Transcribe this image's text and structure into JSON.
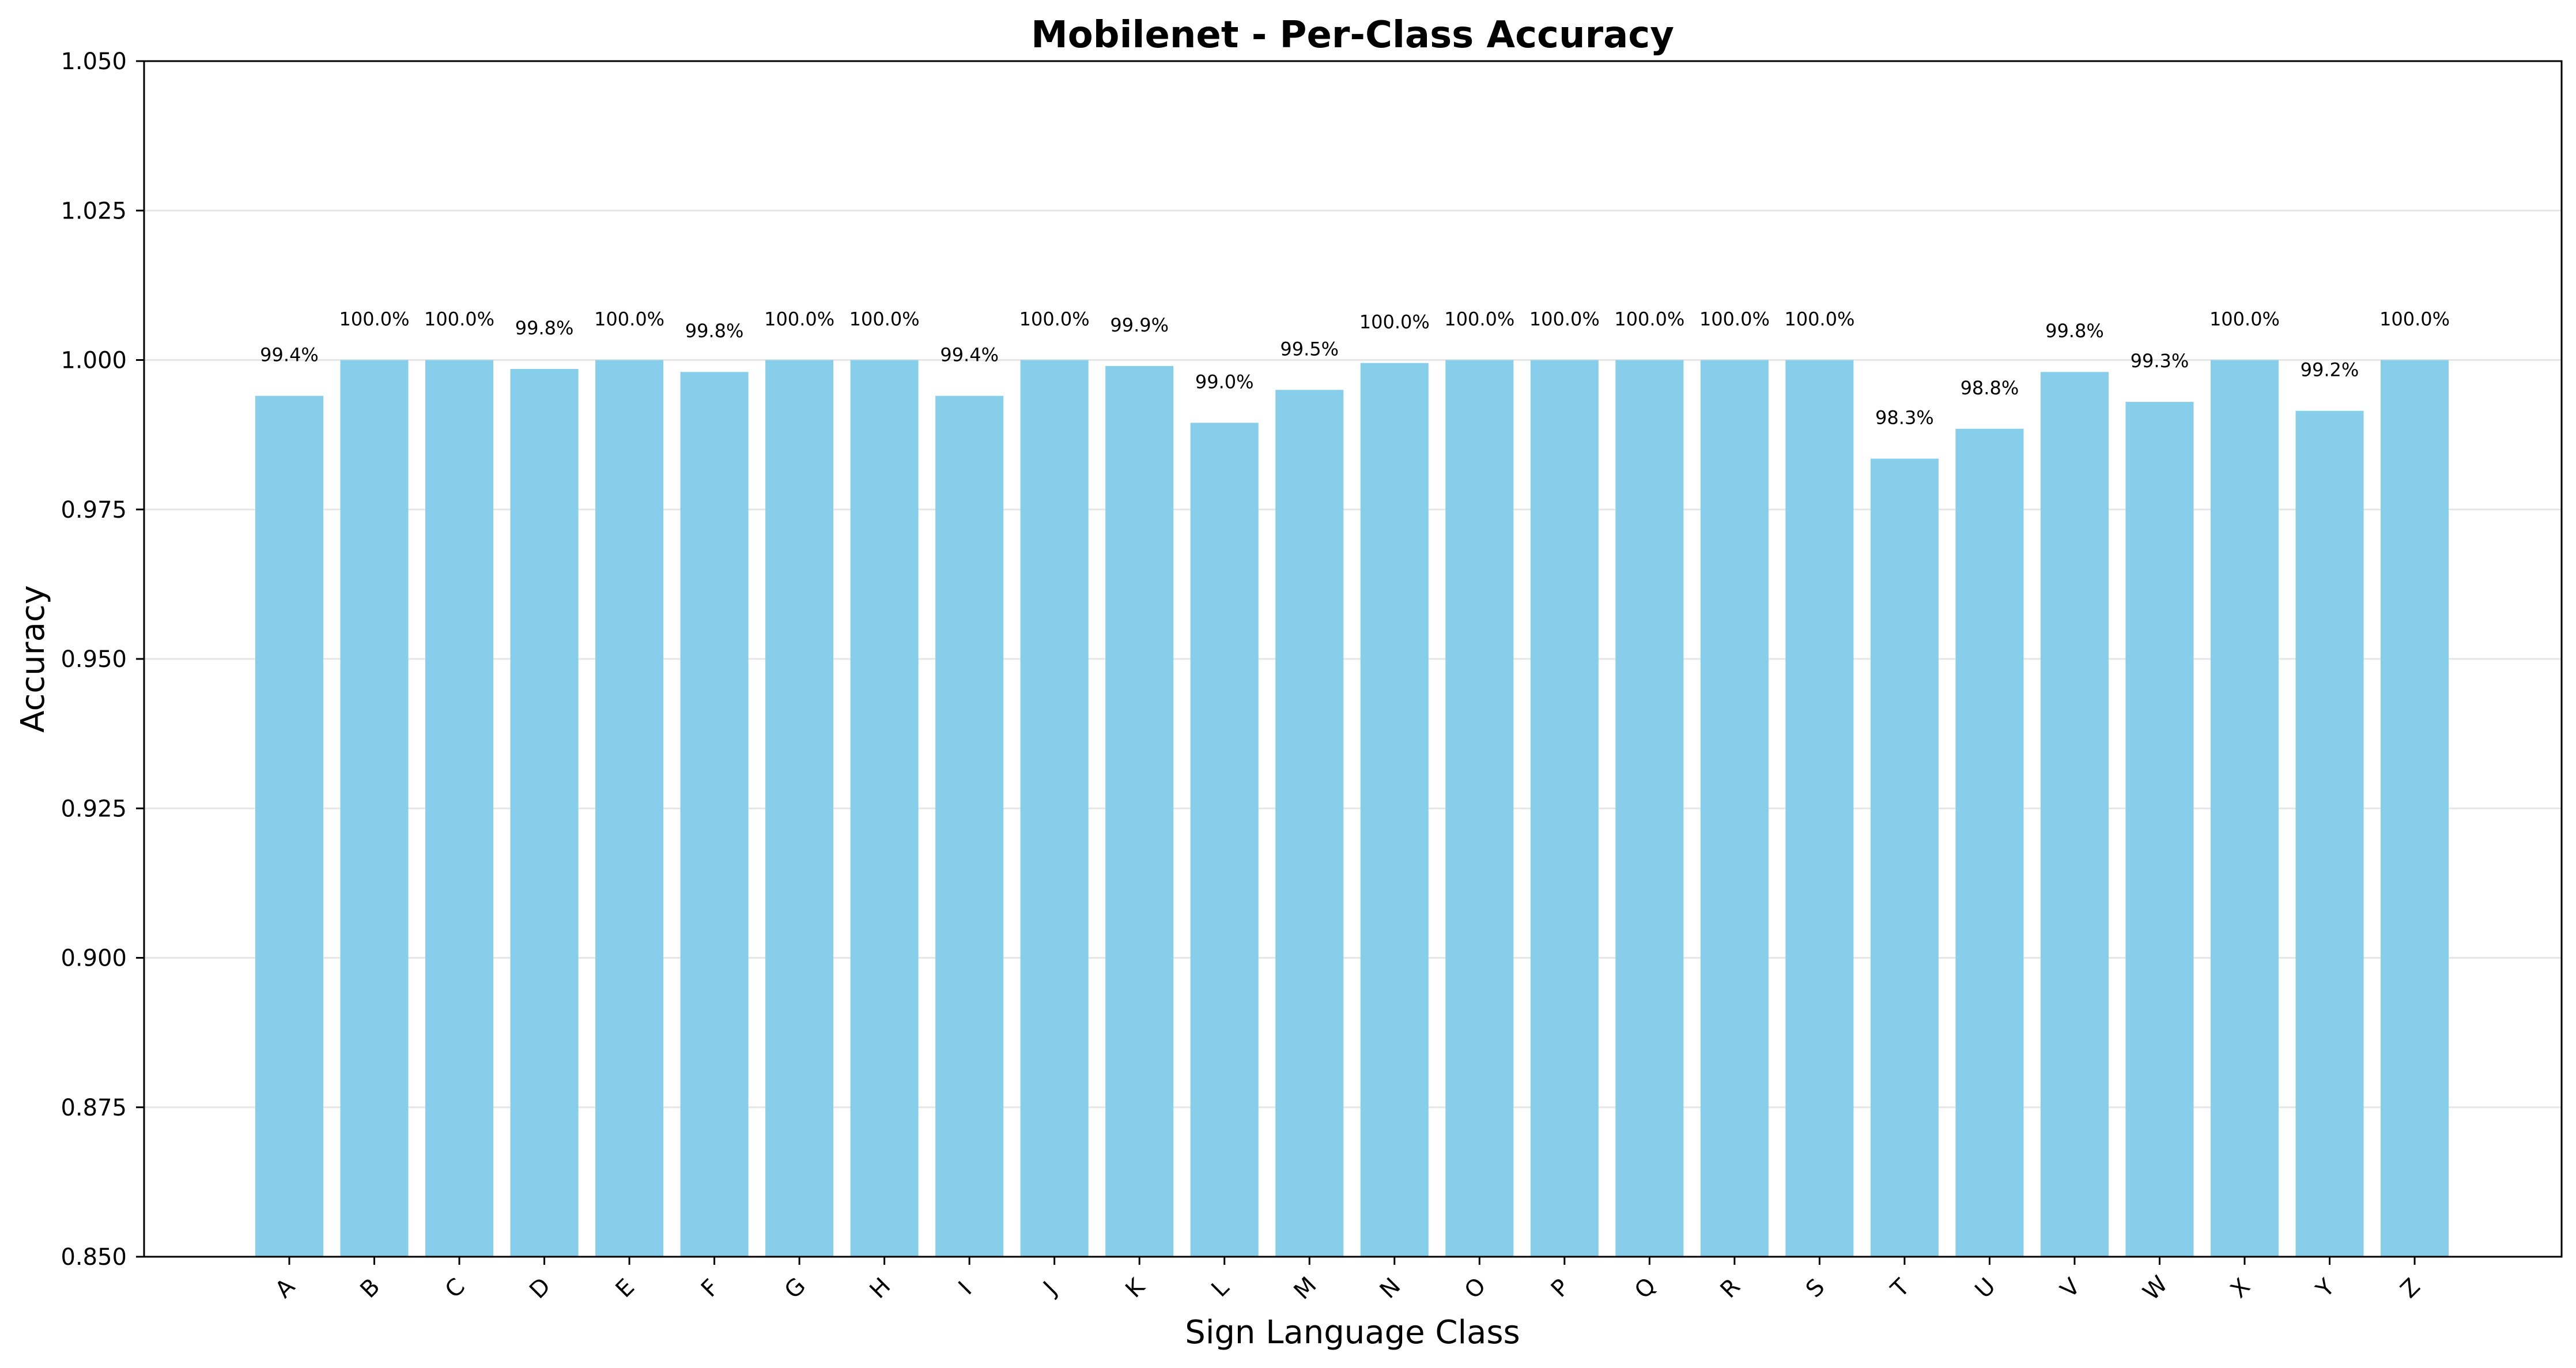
{
  "chart_data": {
    "type": "bar",
    "title": "Mobilenet - Per-Class Accuracy",
    "xlabel": "Sign Language Class",
    "ylabel": "Accuracy",
    "ylim": [
      0.85,
      1.05
    ],
    "yticks": [
      "0.850",
      "0.875",
      "0.900",
      "0.925",
      "0.950",
      "0.975",
      "1.000",
      "1.025",
      "1.050"
    ],
    "grid": "horizontal",
    "bar_color": "#87CEEB",
    "categories": [
      "A",
      "B",
      "C",
      "D",
      "E",
      "F",
      "G",
      "H",
      "I",
      "J",
      "K",
      "L",
      "M",
      "N",
      "O",
      "P",
      "Q",
      "R",
      "S",
      "T",
      "U",
      "V",
      "W",
      "X",
      "Y",
      "Z"
    ],
    "values": [
      0.994,
      1.0,
      1.0,
      0.9985,
      1.0,
      0.998,
      1.0,
      1.0,
      0.994,
      1.0,
      0.999,
      0.9895,
      0.995,
      0.9995,
      1.0,
      1.0,
      1.0,
      1.0,
      1.0,
      0.9835,
      0.9885,
      0.998,
      0.993,
      1.0,
      0.9915,
      1.0
    ],
    "data_labels": [
      "99.4%",
      "100.0%",
      "100.0%",
      "99.8%",
      "100.0%",
      "99.8%",
      "100.0%",
      "100.0%",
      "99.4%",
      "100.0%",
      "99.9%",
      "99.0%",
      "99.5%",
      "100.0%",
      "100.0%",
      "100.0%",
      "100.0%",
      "100.0%",
      "100.0%",
      "98.3%",
      "98.8%",
      "99.8%",
      "99.3%",
      "100.0%",
      "99.2%",
      "100.0%"
    ]
  }
}
